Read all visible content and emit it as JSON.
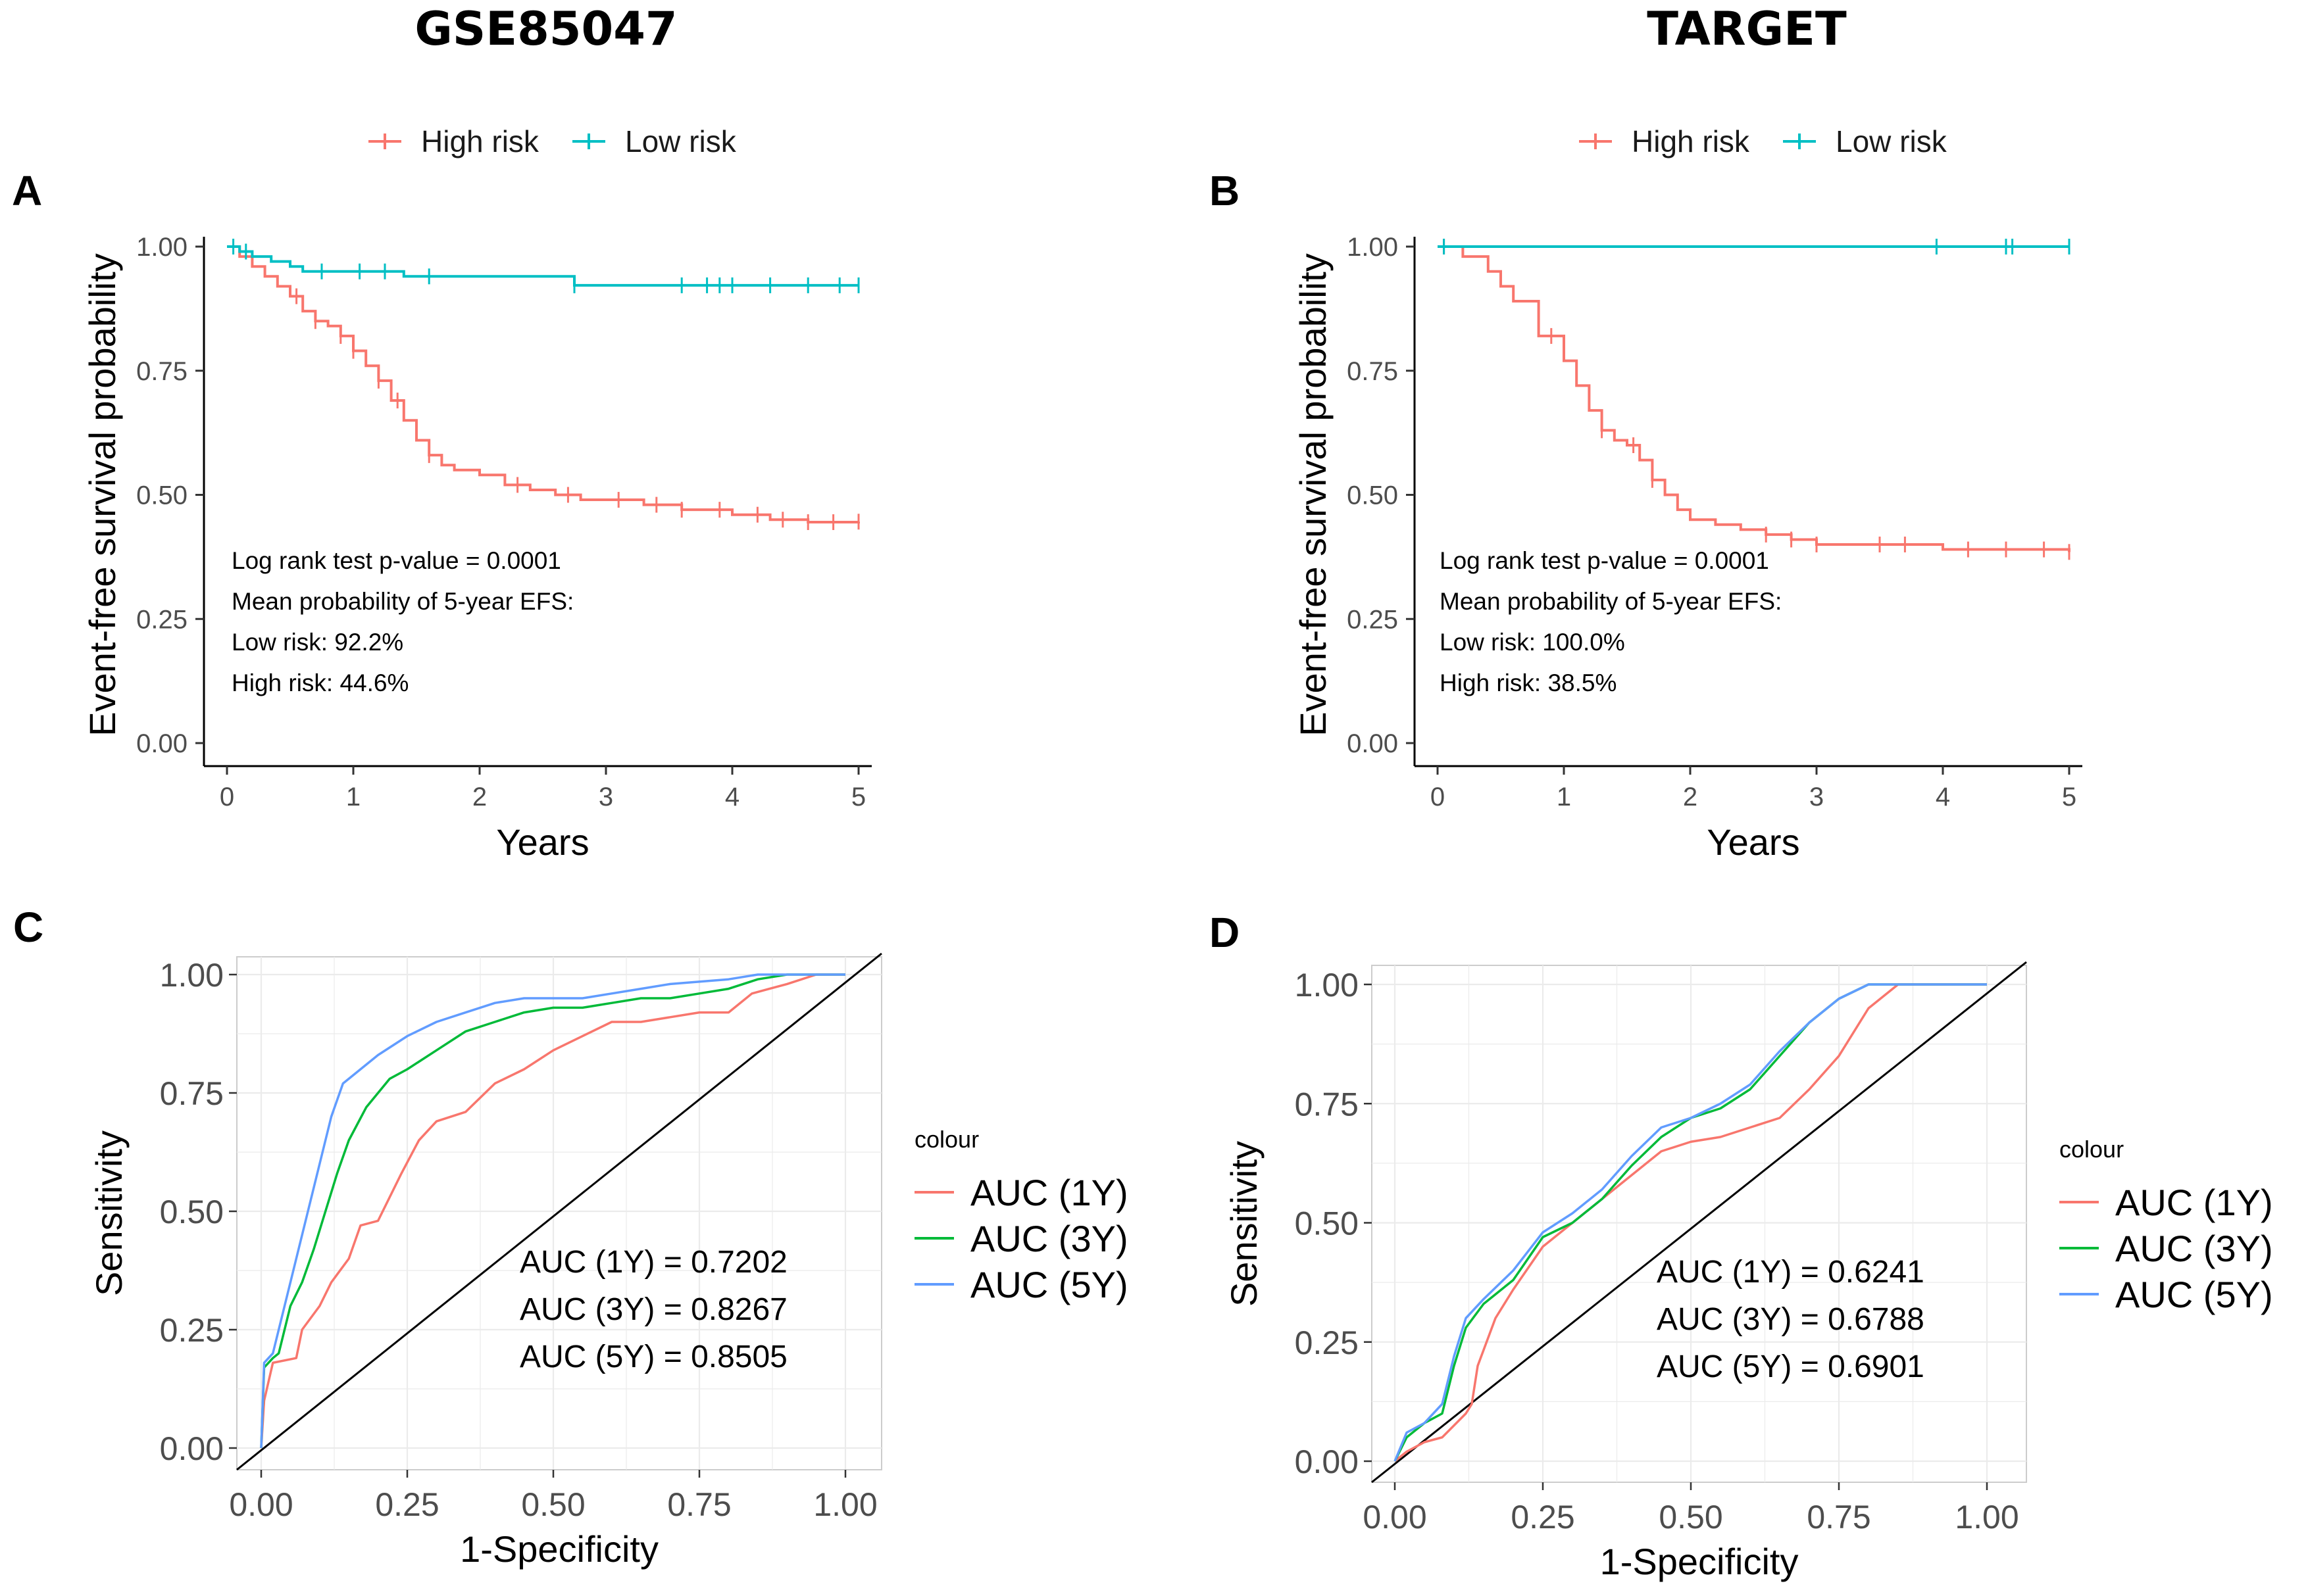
{
  "figure": {
    "left_title": "GSE85047",
    "right_title": "TARGET"
  },
  "colors": {
    "high_risk": "#F8766D",
    "low_risk": "#00BFC4",
    "auc1": "#F8766D",
    "auc3": "#00BA38",
    "auc5": "#619CFF",
    "grid": "#EBEBEB",
    "diagonal": "#000000"
  },
  "chart_data": [
    {
      "panel": "A",
      "type": "line",
      "subtype": "kaplan-meier",
      "legend": [
        "High risk",
        "Low risk"
      ],
      "xlabel": "Years",
      "ylabel": "Event-free survival probability",
      "xlim": [
        0,
        5
      ],
      "ylim": [
        0,
        1
      ],
      "xticks": [
        "0",
        "1",
        "2",
        "3",
        "4",
        "5"
      ],
      "yticks": [
        "0.00",
        "0.25",
        "0.50",
        "0.75",
        "1.00"
      ],
      "annotations": [
        "Log rank test p-value = 0.0001",
        "Mean probability of 5-year EFS:",
        "Low risk: 92.2%",
        "High risk: 44.6%"
      ],
      "series": [
        {
          "name": "High risk",
          "x": [
            0,
            0.1,
            0.2,
            0.3,
            0.4,
            0.5,
            0.6,
            0.7,
            0.8,
            0.9,
            1.0,
            1.1,
            1.2,
            1.3,
            1.4,
            1.5,
            1.6,
            1.7,
            1.8,
            2.0,
            2.2,
            2.4,
            2.6,
            2.8,
            3.0,
            3.3,
            3.6,
            4.0,
            4.3,
            4.6,
            5.0
          ],
          "y": [
            1.0,
            0.98,
            0.96,
            0.94,
            0.92,
            0.9,
            0.87,
            0.85,
            0.84,
            0.82,
            0.79,
            0.76,
            0.73,
            0.69,
            0.65,
            0.61,
            0.58,
            0.56,
            0.55,
            0.54,
            0.52,
            0.51,
            0.5,
            0.49,
            0.49,
            0.48,
            0.47,
            0.46,
            0.45,
            0.445,
            0.446
          ],
          "censor_x": [
            0.55,
            0.7,
            0.9,
            1.0,
            1.2,
            1.35,
            1.6,
            2.3,
            2.7,
            3.1,
            3.4,
            3.6,
            3.9,
            4.2,
            4.4,
            4.6,
            4.8,
            5.0
          ]
        },
        {
          "name": "Low risk",
          "x": [
            0,
            0.1,
            0.2,
            0.35,
            0.5,
            0.6,
            1.2,
            1.4,
            2.7,
            2.75,
            5.0
          ],
          "y": [
            1.0,
            0.99,
            0.98,
            0.97,
            0.96,
            0.95,
            0.95,
            0.94,
            0.94,
            0.922,
            0.922
          ],
          "censor_x": [
            0.05,
            0.15,
            0.75,
            1.05,
            1.25,
            1.6,
            2.75,
            3.6,
            3.8,
            3.9,
            4.0,
            4.3,
            4.6,
            4.85,
            5.0
          ]
        }
      ]
    },
    {
      "panel": "B",
      "type": "line",
      "subtype": "kaplan-meier",
      "legend": [
        "High risk",
        "Low risk"
      ],
      "xlabel": "Years",
      "ylabel": "Event-free survival probability",
      "xlim": [
        0,
        5
      ],
      "ylim": [
        0,
        1
      ],
      "xticks": [
        "0",
        "1",
        "2",
        "3",
        "4",
        "5"
      ],
      "yticks": [
        "0.00",
        "0.25",
        "0.50",
        "0.75",
        "1.00"
      ],
      "annotations": [
        "Log rank test p-value = 0.0001",
        "Mean probability of 5-year EFS:",
        "Low risk: 100.0%",
        "High risk: 38.5%"
      ],
      "series": [
        {
          "name": "High risk",
          "x": [
            0,
            0.2,
            0.4,
            0.5,
            0.6,
            0.8,
            1.0,
            1.1,
            1.2,
            1.3,
            1.4,
            1.5,
            1.6,
            1.7,
            1.8,
            1.9,
            2.0,
            2.2,
            2.4,
            2.6,
            2.8,
            3.0,
            3.5,
            4.0,
            4.5,
            5.0
          ],
          "y": [
            1.0,
            0.98,
            0.95,
            0.92,
            0.89,
            0.82,
            0.77,
            0.72,
            0.67,
            0.63,
            0.61,
            0.6,
            0.57,
            0.53,
            0.5,
            0.47,
            0.45,
            0.44,
            0.43,
            0.42,
            0.41,
            0.4,
            0.4,
            0.39,
            0.39,
            0.385
          ],
          "censor_x": [
            0.05,
            0.9,
            1.3,
            1.55,
            1.7,
            2.6,
            2.8,
            3.0,
            3.5,
            3.7,
            4.2,
            4.5,
            4.8,
            5.0
          ]
        },
        {
          "name": "Low risk",
          "x": [
            0,
            5.0
          ],
          "y": [
            1.0,
            1.0
          ],
          "censor_x": [
            0.05,
            3.95,
            4.5,
            4.55,
            5.0
          ]
        }
      ]
    },
    {
      "panel": "C",
      "type": "line",
      "subtype": "roc",
      "xlabel": "1-Specificity",
      "ylabel": "Sensitivity",
      "xlim": [
        0,
        1
      ],
      "ylim": [
        0,
        1
      ],
      "xticks": [
        "0.00",
        "0.25",
        "0.50",
        "0.75",
        "1.00"
      ],
      "yticks": [
        "0.00",
        "0.25",
        "0.50",
        "0.75",
        "1.00"
      ],
      "legend_title": "colour",
      "legend": [
        "AUC (1Y)",
        "AUC (3Y)",
        "AUC (5Y)"
      ],
      "annotations": [
        "AUC (1Y) = 0.7202",
        "AUC (3Y) = 0.8267",
        "AUC (5Y) = 0.8505"
      ],
      "series": [
        {
          "name": "AUC (1Y)",
          "x": [
            0,
            0.005,
            0.02,
            0.06,
            0.07,
            0.1,
            0.12,
            0.15,
            0.17,
            0.2,
            0.24,
            0.27,
            0.3,
            0.35,
            0.4,
            0.45,
            0.5,
            0.55,
            0.6,
            0.65,
            0.7,
            0.75,
            0.8,
            0.84,
            0.87,
            0.9,
            0.95,
            1.0
          ],
          "y": [
            0,
            0.1,
            0.18,
            0.19,
            0.25,
            0.3,
            0.35,
            0.4,
            0.47,
            0.48,
            0.58,
            0.65,
            0.69,
            0.71,
            0.77,
            0.8,
            0.84,
            0.87,
            0.9,
            0.9,
            0.91,
            0.92,
            0.92,
            0.96,
            0.97,
            0.98,
            1.0,
            1.0
          ]
        },
        {
          "name": "AUC (3Y)",
          "x": [
            0,
            0.005,
            0.02,
            0.03,
            0.05,
            0.07,
            0.09,
            0.11,
            0.13,
            0.15,
            0.18,
            0.2,
            0.22,
            0.25,
            0.3,
            0.35,
            0.4,
            0.45,
            0.5,
            0.55,
            0.6,
            0.65,
            0.7,
            0.75,
            0.8,
            0.85,
            0.9,
            1.0
          ],
          "y": [
            0,
            0.17,
            0.19,
            0.2,
            0.3,
            0.35,
            0.42,
            0.5,
            0.58,
            0.65,
            0.72,
            0.75,
            0.78,
            0.8,
            0.84,
            0.88,
            0.9,
            0.92,
            0.93,
            0.93,
            0.94,
            0.95,
            0.95,
            0.96,
            0.97,
            0.99,
            1.0,
            1.0
          ]
        },
        {
          "name": "AUC (5Y)",
          "x": [
            0,
            0.005,
            0.02,
            0.04,
            0.06,
            0.08,
            0.1,
            0.12,
            0.14,
            0.17,
            0.2,
            0.25,
            0.3,
            0.35,
            0.4,
            0.45,
            0.5,
            0.55,
            0.6,
            0.65,
            0.7,
            0.8,
            0.85,
            0.9,
            1.0
          ],
          "y": [
            0,
            0.18,
            0.2,
            0.3,
            0.4,
            0.5,
            0.6,
            0.7,
            0.77,
            0.8,
            0.83,
            0.87,
            0.9,
            0.92,
            0.94,
            0.95,
            0.95,
            0.95,
            0.96,
            0.97,
            0.98,
            0.99,
            1.0,
            1.0,
            1.0
          ]
        }
      ]
    },
    {
      "panel": "D",
      "type": "line",
      "subtype": "roc",
      "xlabel": "1-Specificity",
      "ylabel": "Sensitivity",
      "xlim": [
        0,
        1
      ],
      "ylim": [
        0,
        1
      ],
      "xticks": [
        "0.00",
        "0.25",
        "0.50",
        "0.75",
        "1.00"
      ],
      "yticks": [
        "0.00",
        "0.25",
        "0.50",
        "0.75",
        "1.00"
      ],
      "legend_title": "colour",
      "legend": [
        "AUC (1Y)",
        "AUC (3Y)",
        "AUC (5Y)"
      ],
      "annotations": [
        "AUC (1Y) = 0.6241",
        "AUC (3Y) = 0.6788",
        "AUC (5Y) = 0.6901"
      ],
      "series": [
        {
          "name": "AUC (1Y)",
          "x": [
            0,
            0.02,
            0.05,
            0.08,
            0.12,
            0.13,
            0.14,
            0.17,
            0.2,
            0.25,
            0.3,
            0.35,
            0.4,
            0.45,
            0.5,
            0.55,
            0.6,
            0.65,
            0.7,
            0.75,
            0.8,
            0.85,
            0.9,
            1.0
          ],
          "y": [
            0,
            0.02,
            0.04,
            0.05,
            0.1,
            0.12,
            0.2,
            0.3,
            0.36,
            0.45,
            0.5,
            0.55,
            0.6,
            0.65,
            0.67,
            0.68,
            0.7,
            0.72,
            0.78,
            0.85,
            0.95,
            1.0,
            1.0,
            1.0
          ]
        },
        {
          "name": "AUC (3Y)",
          "x": [
            0,
            0.02,
            0.05,
            0.08,
            0.1,
            0.12,
            0.15,
            0.2,
            0.25,
            0.3,
            0.35,
            0.4,
            0.45,
            0.5,
            0.55,
            0.6,
            0.65,
            0.7,
            0.75,
            0.8,
            0.85,
            0.9,
            1.0
          ],
          "y": [
            0,
            0.05,
            0.08,
            0.1,
            0.2,
            0.28,
            0.33,
            0.38,
            0.47,
            0.5,
            0.55,
            0.62,
            0.68,
            0.72,
            0.74,
            0.78,
            0.85,
            0.92,
            0.97,
            1.0,
            1.0,
            1.0,
            1.0
          ]
        },
        {
          "name": "AUC (5Y)",
          "x": [
            0,
            0.02,
            0.05,
            0.08,
            0.1,
            0.12,
            0.15,
            0.2,
            0.25,
            0.3,
            0.35,
            0.4,
            0.45,
            0.5,
            0.55,
            0.6,
            0.65,
            0.7,
            0.75,
            0.8,
            0.85,
            0.9,
            1.0
          ],
          "y": [
            0,
            0.06,
            0.08,
            0.12,
            0.22,
            0.3,
            0.34,
            0.4,
            0.48,
            0.52,
            0.57,
            0.64,
            0.7,
            0.72,
            0.75,
            0.79,
            0.86,
            0.92,
            0.97,
            1.0,
            1.0,
            1.0,
            1.0
          ]
        }
      ]
    }
  ]
}
